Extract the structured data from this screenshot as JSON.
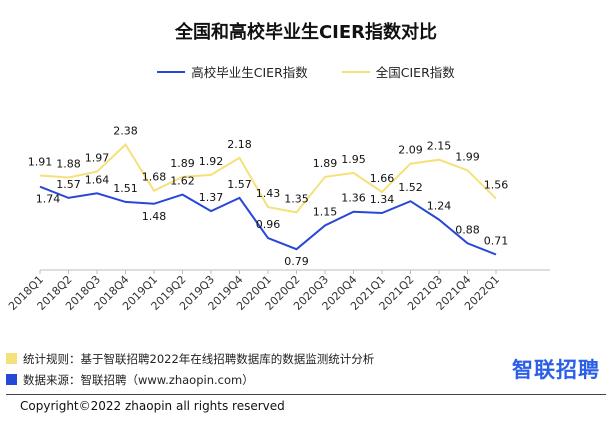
{
  "colors": {
    "series_blue": "#2647d8",
    "series_yellow": "#f5e17a",
    "brand_blue": "#2c5fe8"
  },
  "chart_data": {
    "type": "line",
    "title": "全国和高校毕业生CIER指数对比",
    "categories": [
      "2018Q1",
      "2018Q2",
      "2018Q3",
      "2018Q4",
      "2019Q1",
      "2019Q2",
      "2019Q3",
      "2019Q4",
      "2020Q1",
      "2020Q2",
      "2020Q3",
      "2020Q4",
      "2021Q1",
      "2021Q2",
      "2021Q3",
      "2021Q4",
      "2022Q1"
    ],
    "series": [
      {
        "name": "高校毕业生CIER指数",
        "values": [
          1.74,
          1.57,
          1.64,
          1.51,
          1.48,
          1.62,
          1.37,
          1.57,
          0.96,
          0.79,
          1.15,
          1.36,
          1.34,
          1.52,
          1.24,
          0.88,
          0.71
        ]
      },
      {
        "name": "全国CIER指数",
        "values": [
          1.91,
          1.88,
          1.97,
          2.38,
          1.68,
          1.89,
          1.92,
          2.18,
          1.43,
          1.35,
          1.89,
          1.95,
          1.66,
          2.09,
          2.15,
          1.99,
          1.56
        ]
      }
    ],
    "legend_position": "top-center",
    "grid": false
  },
  "notes": [
    {
      "text": "统计规则：基于智联招聘2022年在线招聘数据库的数据监测统计分析",
      "color": "#f5e17a"
    },
    {
      "text": "数据来源：智联招聘（www.zhaopin.com）",
      "color": "#2647d8"
    }
  ],
  "brand": "智联招聘",
  "copyright": "Copyright©2022 zhaopin all rights reserved"
}
